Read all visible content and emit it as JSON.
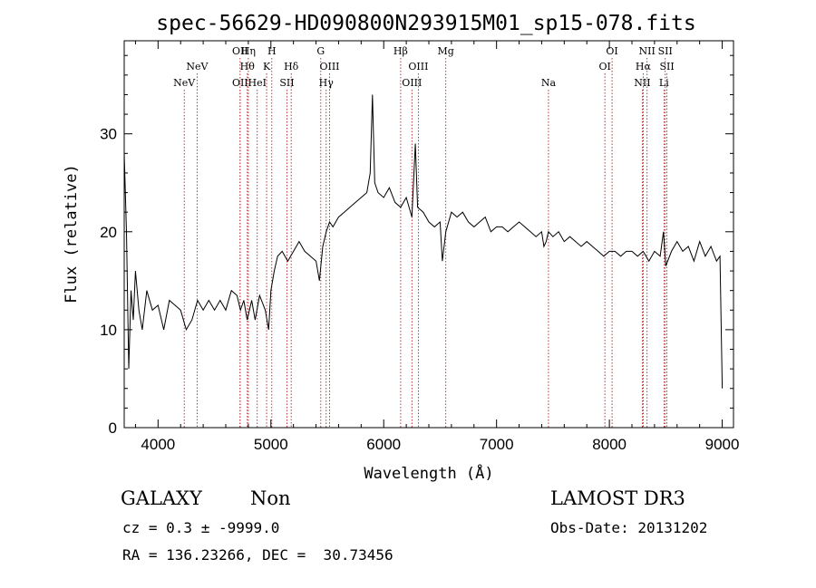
{
  "chart_data": {
    "type": "line",
    "title": "spec-56629-HD090800N293915M01_sp15-078.fits",
    "xlabel": "Wavelength (Å)",
    "ylabel": "Flux (relative)",
    "xlim": [
      3700,
      9100
    ],
    "ylim": [
      0,
      39.5
    ],
    "xticks": [
      4000,
      5000,
      6000,
      7000,
      8000,
      9000
    ],
    "yticks": [
      0,
      10,
      20,
      30
    ],
    "grid": false,
    "series": [
      {
        "color": "#000000",
        "x": [
          3700,
          3720,
          3740,
          3760,
          3780,
          3800,
          3830,
          3860,
          3900,
          3950,
          4000,
          4050,
          4100,
          4150,
          4200,
          4250,
          4300,
          4350,
          4400,
          4450,
          4500,
          4550,
          4600,
          4650,
          4700,
          4730,
          4760,
          4790,
          4830,
          4860,
          4900,
          4950,
          4980,
          5000,
          5030,
          5060,
          5100,
          5150,
          5200,
          5250,
          5300,
          5350,
          5400,
          5430,
          5460,
          5490,
          5520,
          5550,
          5600,
          5650,
          5700,
          5750,
          5800,
          5850,
          5880,
          5900,
          5920,
          5950,
          6000,
          6050,
          6100,
          6150,
          6200,
          6250,
          6280,
          6300,
          6350,
          6400,
          6450,
          6500,
          6520,
          6550,
          6600,
          6650,
          6700,
          6750,
          6800,
          6850,
          6900,
          6950,
          7000,
          7050,
          7100,
          7150,
          7200,
          7250,
          7300,
          7350,
          7400,
          7420,
          7440,
          7460,
          7500,
          7550,
          7600,
          7650,
          7700,
          7750,
          7800,
          7850,
          7900,
          7950,
          8000,
          8050,
          8100,
          8150,
          8200,
          8250,
          8300,
          8350,
          8400,
          8450,
          8480,
          8500,
          8550,
          8600,
          8650,
          8700,
          8750,
          8800,
          8850,
          8900,
          8950,
          8980,
          9000
        ],
        "y": [
          28,
          20,
          6,
          14,
          11,
          16,
          12,
          10,
          14,
          12,
          12.5,
          10,
          13,
          12.5,
          12,
          10,
          11,
          13,
          12,
          13,
          12,
          13,
          12,
          14,
          13.5,
          12,
          13,
          11,
          13,
          11,
          13.5,
          12,
          10,
          14,
          16,
          17.5,
          18,
          17,
          18,
          19,
          18,
          17.5,
          17,
          15,
          18.5,
          20,
          21,
          20.5,
          21.5,
          22,
          22.5,
          23,
          23.5,
          24,
          26,
          34,
          25,
          24,
          23.5,
          24.5,
          23,
          22.5,
          23.5,
          21.5,
          29,
          22.5,
          22,
          21,
          20.5,
          21,
          17,
          20,
          22,
          21.5,
          22,
          21,
          20.5,
          21,
          21.5,
          20,
          20.5,
          20.5,
          20,
          20.5,
          21,
          20.5,
          20,
          19.5,
          20,
          18.5,
          19,
          20,
          19.5,
          20,
          19,
          19.5,
          19,
          18.5,
          19,
          18.5,
          18,
          17.5,
          18,
          18,
          17.5,
          18,
          18,
          17.5,
          18,
          17,
          18,
          17.5,
          20,
          16.5,
          18,
          19,
          18,
          18.5,
          17,
          19,
          17.5,
          18.5,
          17,
          17.5,
          4
        ]
      }
    ],
    "line_markers": [
      {
        "label": "NeV",
        "x": 3426,
        "row": 1,
        "visible": false
      },
      {
        "label": "NeV",
        "x": 4232,
        "row": 2
      },
      {
        "label": "NeV",
        "x": 4346,
        "row": 1
      },
      {
        "label": "OII",
        "x": 4727,
        "row": 0
      },
      {
        "label": "OII",
        "x": 4727,
        "row": 2
      },
      {
        "label": "Hη",
        "x": 4800,
        "row": 0
      },
      {
        "label": "Hθ",
        "x": 4791,
        "row": 1
      },
      {
        "label": "HeI",
        "x": 4879,
        "row": 2
      },
      {
        "label": "H",
        "x": 5008,
        "row": 0
      },
      {
        "label": "K",
        "x": 4962,
        "row": 1
      },
      {
        "label": "Hδ",
        "x": 5180,
        "row": 1
      },
      {
        "label": "SII",
        "x": 5142,
        "row": 2
      },
      {
        "label": "G",
        "x": 5442,
        "row": 0
      },
      {
        "label": "OIII",
        "x": 5520,
        "row": 1
      },
      {
        "label": "Hγ",
        "x": 5490,
        "row": 2
      },
      {
        "label": "Hβ",
        "x": 6150,
        "row": 0
      },
      {
        "label": "OIII",
        "x": 6307,
        "row": 1
      },
      {
        "label": "OIII",
        "x": 6250,
        "row": 2
      },
      {
        "label": "Mg",
        "x": 6550,
        "row": 0
      },
      {
        "label": "Na",
        "x": 7460,
        "row": 2
      },
      {
        "label": "OI",
        "x": 8024,
        "row": 0
      },
      {
        "label": "OI",
        "x": 7960,
        "row": 1
      },
      {
        "label": "NII",
        "x": 8334,
        "row": 0
      },
      {
        "label": "Hα",
        "x": 8300,
        "row": 1
      },
      {
        "label": "NII",
        "x": 8292,
        "row": 2
      },
      {
        "label": "SII",
        "x": 8495,
        "row": 0
      },
      {
        "label": "SII",
        "x": 8510,
        "row": 1
      },
      {
        "label": "Li",
        "x": 8484,
        "row": 2
      }
    ],
    "marker_color": "#b22222"
  },
  "info": {
    "class_label": "GALAXY",
    "subclass_label": "Non",
    "survey_label": "LAMOST DR3",
    "cz_line": "cz = 0.3 ± -9999.0",
    "obsdate_line": "Obs-Date: 20131202",
    "coords_line": "RA = 136.23266, DEC =  30.73456"
  }
}
